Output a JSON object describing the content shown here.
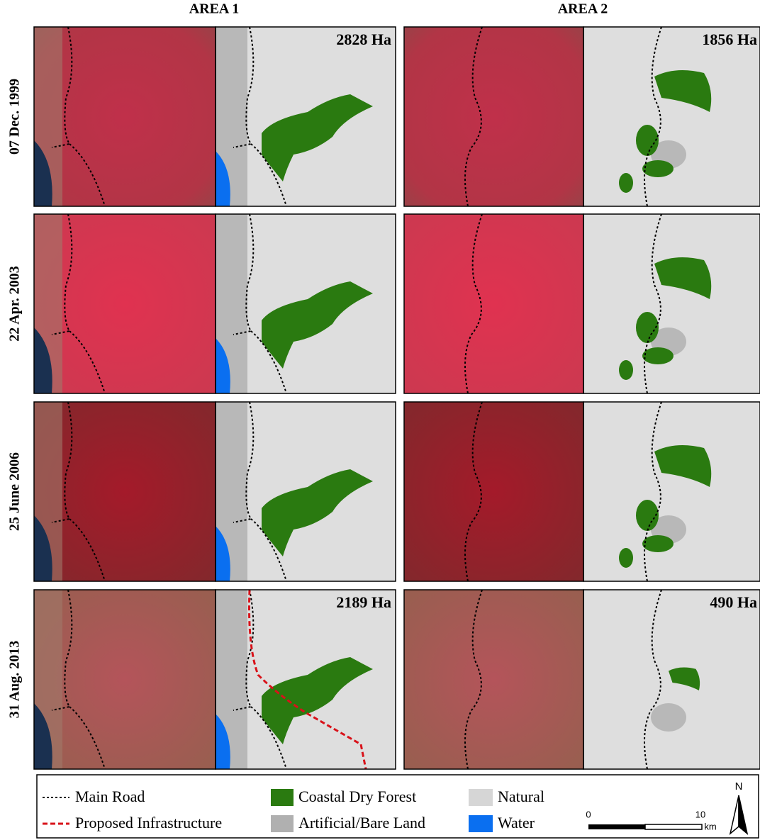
{
  "header": {
    "columns": [
      "AREA 1",
      "AREA 2"
    ]
  },
  "rows": [
    {
      "date": "07 Dec. 1999",
      "area1_label": "2828 Ha",
      "area2_label": "1856 Ha"
    },
    {
      "date": "22 Apr. 2003"
    },
    {
      "date": "25 June 2006"
    },
    {
      "date": "31 Aug. 2013",
      "area1_label": "2189 Ha",
      "area2_label": "490 Ha"
    }
  ],
  "legend": {
    "items": [
      "Main Road",
      "Proposed Infrastructure",
      "Coastal Dry Forest",
      "Artificial/Bare Land",
      "Natural",
      "Water"
    ]
  },
  "scale_bar": {
    "start": "0",
    "end": "10",
    "unit": "km"
  },
  "north": "N"
}
